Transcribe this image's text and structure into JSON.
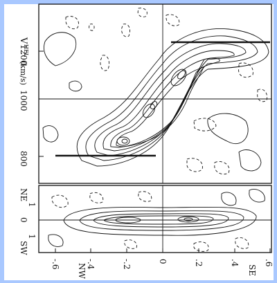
{
  "figure": {
    "top_panel": {
      "y_axis_label": "V",
      "y_axis_label_sub": "HEL",
      "y_axis_label_unit": "(km/s)",
      "y_ticks": [
        "1200",
        "1000",
        "800"
      ]
    },
    "bottom_panel": {
      "y_ticks": [
        "0"
      ],
      "side_labels": {
        "top": "NE",
        "top_number": "1",
        "bottom": "SW",
        "bottom_number": "1"
      }
    },
    "x_axis": {
      "ticks": [
        "-.6",
        "-.4",
        "-.2",
        "0",
        ".2",
        ".4",
        ".6"
      ],
      "left_label": "NW",
      "right_label": "SE"
    },
    "colors": {
      "frame_border": "#a9c8ff",
      "panel_background": "#ffffff",
      "ink": "#111111"
    }
  }
}
